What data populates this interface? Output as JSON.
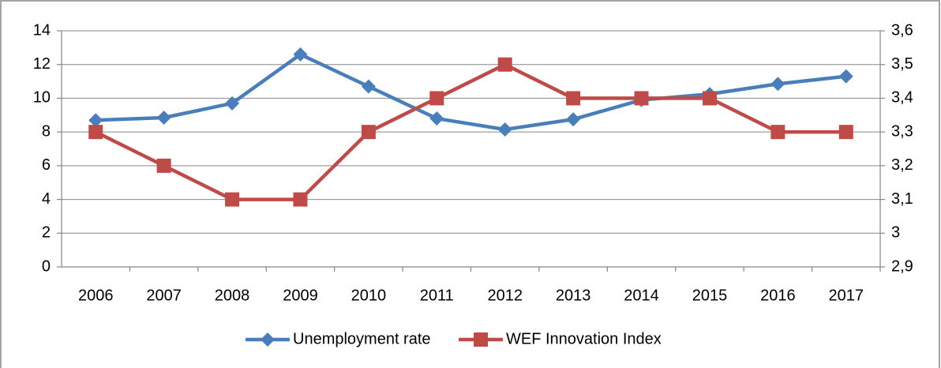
{
  "chart_data": {
    "type": "line",
    "categories": [
      "2006",
      "2007",
      "2008",
      "2009",
      "2010",
      "2011",
      "2012",
      "2013",
      "2014",
      "2015",
      "2016",
      "2017"
    ],
    "series": [
      {
        "name": "Unemployment rate",
        "color": "#4a7ebb",
        "marker": "diamond",
        "values": [
          8.7,
          8.85,
          9.7,
          12.6,
          10.7,
          8.8,
          8.15,
          8.75,
          9.9,
          10.25,
          10.85,
          11.3
        ]
      },
      {
        "name": "WEF Innovation Index",
        "color": "#be4b48",
        "marker": "square",
        "axis": "y2",
        "values": [
          3.3,
          3.2,
          3.1,
          3.1,
          3.3,
          3.4,
          3.5,
          3.4,
          3.4,
          3.4,
          3.3,
          3.3
        ]
      }
    ],
    "ylim": [
      0,
      14
    ],
    "yticks": [
      0,
      2,
      4,
      6,
      8,
      10,
      12,
      14
    ],
    "y2lim": [
      2.9,
      3.6
    ],
    "y2ticks": [
      {
        "value": 2.9,
        "label": "2,9"
      },
      3,
      {
        "value": 3.1,
        "label": "3,1"
      },
      {
        "value": 3.2,
        "label": "3,2"
      },
      {
        "value": 3.3,
        "label": "3,3"
      },
      {
        "value": 3.4,
        "label": "3,4"
      },
      {
        "value": 3.5,
        "label": "3,5"
      },
      {
        "value": 3.6,
        "label": "3,6"
      }
    ],
    "grid": true,
    "legend": "bottom"
  }
}
